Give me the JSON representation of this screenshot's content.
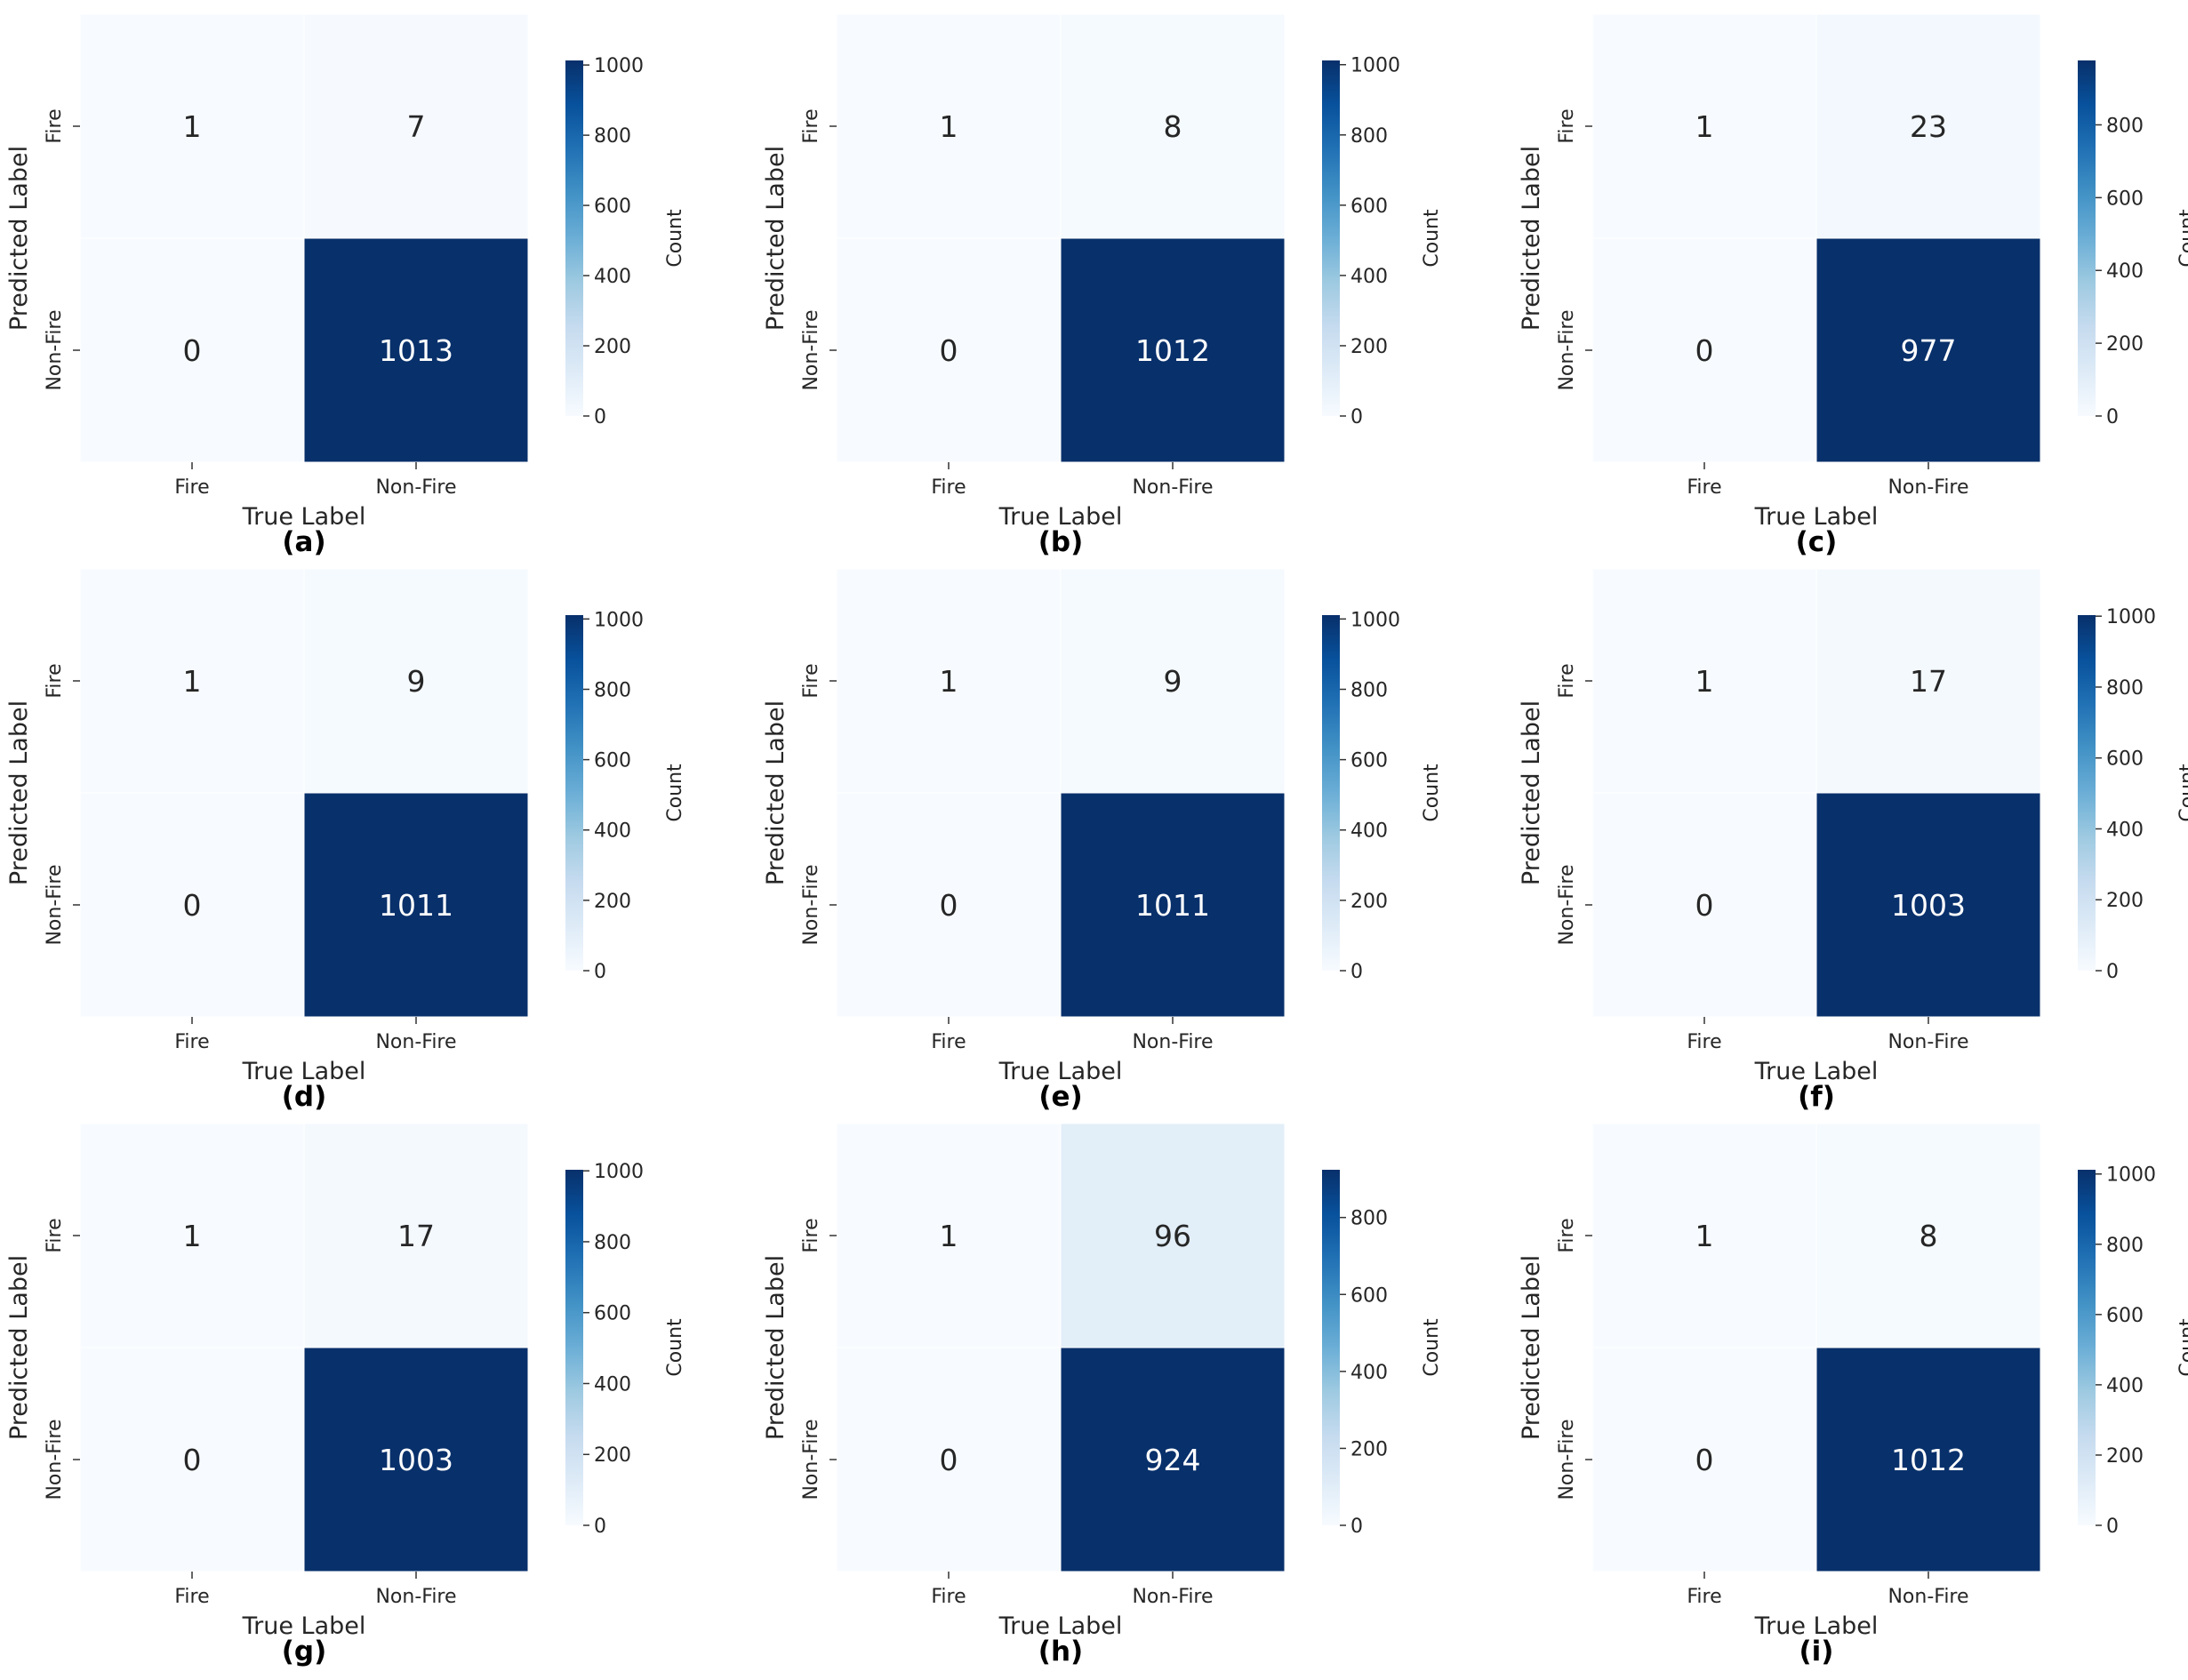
{
  "chart_data": [
    {
      "type": "heatmap",
      "panel_label": "(a)",
      "xlabel": "True Label",
      "ylabel": "Predicted Label",
      "x_categories": [
        "Fire",
        "Non-Fire"
      ],
      "y_categories": [
        "Fire",
        "Non-Fire"
      ],
      "values": [
        [
          1,
          7
        ],
        [
          0,
          1013
        ]
      ],
      "colorbar_label": "Count",
      "colorbar_ticks": [
        0,
        200,
        400,
        600,
        800,
        1000
      ],
      "colorbar_range": [
        0,
        1013
      ],
      "colormap": "Blues"
    },
    {
      "type": "heatmap",
      "panel_label": "(b)",
      "xlabel": "True Label",
      "ylabel": "Predicted Label",
      "x_categories": [
        "Fire",
        "Non-Fire"
      ],
      "y_categories": [
        "Fire",
        "Non-Fire"
      ],
      "values": [
        [
          1,
          8
        ],
        [
          0,
          1012
        ]
      ],
      "colorbar_label": "Count",
      "colorbar_ticks": [
        0,
        200,
        400,
        600,
        800,
        1000
      ],
      "colorbar_range": [
        0,
        1012
      ],
      "colormap": "Blues"
    },
    {
      "type": "heatmap",
      "panel_label": "(c)",
      "xlabel": "True Label",
      "ylabel": "Predicted Label",
      "x_categories": [
        "Fire",
        "Non-Fire"
      ],
      "y_categories": [
        "Fire",
        "Non-Fire"
      ],
      "values": [
        [
          1,
          23
        ],
        [
          0,
          977
        ]
      ],
      "colorbar_label": "Count",
      "colorbar_ticks": [
        0,
        200,
        400,
        600,
        800
      ],
      "colorbar_range": [
        0,
        977
      ],
      "colormap": "Blues"
    },
    {
      "type": "heatmap",
      "panel_label": "(d)",
      "xlabel": "True Label",
      "ylabel": "Predicted Label",
      "x_categories": [
        "Fire",
        "Non-Fire"
      ],
      "y_categories": [
        "Fire",
        "Non-Fire"
      ],
      "values": [
        [
          1,
          9
        ],
        [
          0,
          1011
        ]
      ],
      "colorbar_label": "Count",
      "colorbar_ticks": [
        0,
        200,
        400,
        600,
        800,
        1000
      ],
      "colorbar_range": [
        0,
        1011
      ],
      "colormap": "Blues"
    },
    {
      "type": "heatmap",
      "panel_label": "(e)",
      "xlabel": "True Label",
      "ylabel": "Predicted Label",
      "x_categories": [
        "Fire",
        "Non-Fire"
      ],
      "y_categories": [
        "Fire",
        "Non-Fire"
      ],
      "values": [
        [
          1,
          9
        ],
        [
          0,
          1011
        ]
      ],
      "colorbar_label": "Count",
      "colorbar_ticks": [
        0,
        200,
        400,
        600,
        800,
        1000
      ],
      "colorbar_range": [
        0,
        1011
      ],
      "colormap": "Blues"
    },
    {
      "type": "heatmap",
      "panel_label": "(f)",
      "xlabel": "True Label",
      "ylabel": "Predicted Label",
      "x_categories": [
        "Fire",
        "Non-Fire"
      ],
      "y_categories": [
        "Fire",
        "Non-Fire"
      ],
      "values": [
        [
          1,
          17
        ],
        [
          0,
          1003
        ]
      ],
      "colorbar_label": "Count",
      "colorbar_ticks": [
        0,
        200,
        400,
        600,
        800,
        1000
      ],
      "colorbar_range": [
        0,
        1003
      ],
      "colormap": "Blues"
    },
    {
      "type": "heatmap",
      "panel_label": "(g)",
      "xlabel": "True Label",
      "ylabel": "Predicted Label",
      "x_categories": [
        "Fire",
        "Non-Fire"
      ],
      "y_categories": [
        "Fire",
        "Non-Fire"
      ],
      "values": [
        [
          1,
          17
        ],
        [
          0,
          1003
        ]
      ],
      "colorbar_label": "Count",
      "colorbar_ticks": [
        0,
        200,
        400,
        600,
        800,
        1000
      ],
      "colorbar_range": [
        0,
        1003
      ],
      "colormap": "Blues"
    },
    {
      "type": "heatmap",
      "panel_label": "(h)",
      "xlabel": "True Label",
      "ylabel": "Predicted Label",
      "x_categories": [
        "Fire",
        "Non-Fire"
      ],
      "y_categories": [
        "Fire",
        "Non-Fire"
      ],
      "values": [
        [
          1,
          96
        ],
        [
          0,
          924
        ]
      ],
      "colorbar_label": "Count",
      "colorbar_ticks": [
        0,
        200,
        400,
        600,
        800
      ],
      "colorbar_range": [
        0,
        924
      ],
      "colormap": "Blues"
    },
    {
      "type": "heatmap",
      "panel_label": "(i)",
      "xlabel": "True Label",
      "ylabel": "Predicted Label",
      "x_categories": [
        "Fire",
        "Non-Fire"
      ],
      "y_categories": [
        "Fire",
        "Non-Fire"
      ],
      "values": [
        [
          1,
          8
        ],
        [
          0,
          1012
        ]
      ],
      "colorbar_label": "Count",
      "colorbar_ticks": [
        0,
        200,
        400,
        600,
        800,
        1000
      ],
      "colorbar_range": [
        0,
        1012
      ],
      "colormap": "Blues"
    }
  ]
}
